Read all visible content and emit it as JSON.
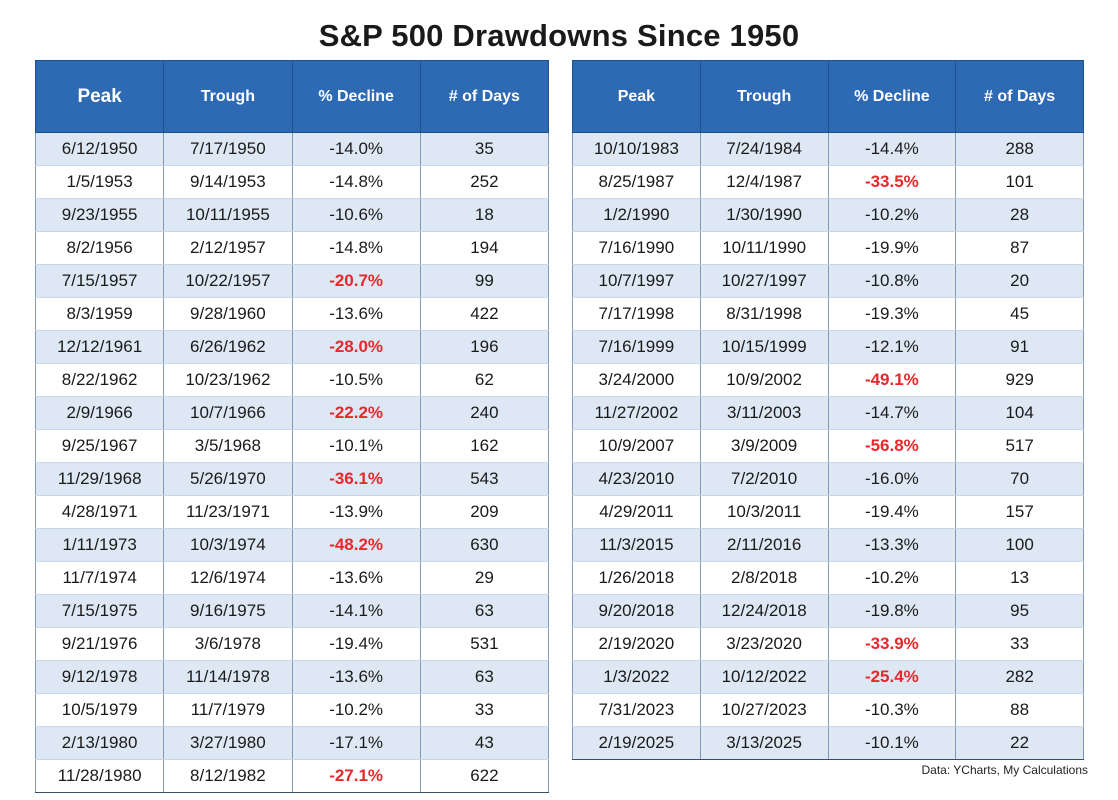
{
  "title": "S&P 500 Drawdowns Since 1950",
  "headers": [
    "Peak",
    "Trough",
    "% Decline",
    "# of Days"
  ],
  "left_table": [
    {
      "peak": "6/12/1950",
      "trough": "7/17/1950",
      "decline": "-14.0%",
      "days": "35",
      "highlight": false
    },
    {
      "peak": "1/5/1953",
      "trough": "9/14/1953",
      "decline": "-14.8%",
      "days": "252",
      "highlight": false
    },
    {
      "peak": "9/23/1955",
      "trough": "10/11/1955",
      "decline": "-10.6%",
      "days": "18",
      "highlight": false
    },
    {
      "peak": "8/2/1956",
      "trough": "2/12/1957",
      "decline": "-14.8%",
      "days": "194",
      "highlight": false
    },
    {
      "peak": "7/15/1957",
      "trough": "10/22/1957",
      "decline": "-20.7%",
      "days": "99",
      "highlight": true
    },
    {
      "peak": "8/3/1959",
      "trough": "9/28/1960",
      "decline": "-13.6%",
      "days": "422",
      "highlight": false
    },
    {
      "peak": "12/12/1961",
      "trough": "6/26/1962",
      "decline": "-28.0%",
      "days": "196",
      "highlight": true
    },
    {
      "peak": "8/22/1962",
      "trough": "10/23/1962",
      "decline": "-10.5%",
      "days": "62",
      "highlight": false
    },
    {
      "peak": "2/9/1966",
      "trough": "10/7/1966",
      "decline": "-22.2%",
      "days": "240",
      "highlight": true
    },
    {
      "peak": "9/25/1967",
      "trough": "3/5/1968",
      "decline": "-10.1%",
      "days": "162",
      "highlight": false
    },
    {
      "peak": "11/29/1968",
      "trough": "5/26/1970",
      "decline": "-36.1%",
      "days": "543",
      "highlight": true
    },
    {
      "peak": "4/28/1971",
      "trough": "11/23/1971",
      "decline": "-13.9%",
      "days": "209",
      "highlight": false
    },
    {
      "peak": "1/11/1973",
      "trough": "10/3/1974",
      "decline": "-48.2%",
      "days": "630",
      "highlight": true
    },
    {
      "peak": "11/7/1974",
      "trough": "12/6/1974",
      "decline": "-13.6%",
      "days": "29",
      "highlight": false
    },
    {
      "peak": "7/15/1975",
      "trough": "9/16/1975",
      "decline": "-14.1%",
      "days": "63",
      "highlight": false
    },
    {
      "peak": "9/21/1976",
      "trough": "3/6/1978",
      "decline": "-19.4%",
      "days": "531",
      "highlight": false
    },
    {
      "peak": "9/12/1978",
      "trough": "11/14/1978",
      "decline": "-13.6%",
      "days": "63",
      "highlight": false
    },
    {
      "peak": "10/5/1979",
      "trough": "11/7/1979",
      "decline": "-10.2%",
      "days": "33",
      "highlight": false
    },
    {
      "peak": "2/13/1980",
      "trough": "3/27/1980",
      "decline": "-17.1%",
      "days": "43",
      "highlight": false
    },
    {
      "peak": "11/28/1980",
      "trough": "8/12/1982",
      "decline": "-27.1%",
      "days": "622",
      "highlight": true
    }
  ],
  "right_table": [
    {
      "peak": "10/10/1983",
      "trough": "7/24/1984",
      "decline": "-14.4%",
      "days": "288",
      "highlight": false
    },
    {
      "peak": "8/25/1987",
      "trough": "12/4/1987",
      "decline": "-33.5%",
      "days": "101",
      "highlight": true
    },
    {
      "peak": "1/2/1990",
      "trough": "1/30/1990",
      "decline": "-10.2%",
      "days": "28",
      "highlight": false
    },
    {
      "peak": "7/16/1990",
      "trough": "10/11/1990",
      "decline": "-19.9%",
      "days": "87",
      "highlight": false
    },
    {
      "peak": "10/7/1997",
      "trough": "10/27/1997",
      "decline": "-10.8%",
      "days": "20",
      "highlight": false
    },
    {
      "peak": "7/17/1998",
      "trough": "8/31/1998",
      "decline": "-19.3%",
      "days": "45",
      "highlight": false
    },
    {
      "peak": "7/16/1999",
      "trough": "10/15/1999",
      "decline": "-12.1%",
      "days": "91",
      "highlight": false
    },
    {
      "peak": "3/24/2000",
      "trough": "10/9/2002",
      "decline": "-49.1%",
      "days": "929",
      "highlight": true
    },
    {
      "peak": "11/27/2002",
      "trough": "3/11/2003",
      "decline": "-14.7%",
      "days": "104",
      "highlight": false
    },
    {
      "peak": "10/9/2007",
      "trough": "3/9/2009",
      "decline": "-56.8%",
      "days": "517",
      "highlight": true
    },
    {
      "peak": "4/23/2010",
      "trough": "7/2/2010",
      "decline": "-16.0%",
      "days": "70",
      "highlight": false
    },
    {
      "peak": "4/29/2011",
      "trough": "10/3/2011",
      "decline": "-19.4%",
      "days": "157",
      "highlight": false
    },
    {
      "peak": "11/3/2015",
      "trough": "2/11/2016",
      "decline": "-13.3%",
      "days": "100",
      "highlight": false
    },
    {
      "peak": "1/26/2018",
      "trough": "2/8/2018",
      "decline": "-10.2%",
      "days": "13",
      "highlight": false
    },
    {
      "peak": "9/20/2018",
      "trough": "12/24/2018",
      "decline": "-19.8%",
      "days": "95",
      "highlight": false
    },
    {
      "peak": "2/19/2020",
      "trough": "3/23/2020",
      "decline": "-33.9%",
      "days": "33",
      "highlight": true
    },
    {
      "peak": "1/3/2022",
      "trough": "10/12/2022",
      "decline": "-25.4%",
      "days": "282",
      "highlight": true
    },
    {
      "peak": "7/31/2023",
      "trough": "10/27/2023",
      "decline": "-10.3%",
      "days": "88",
      "highlight": false
    },
    {
      "peak": "2/19/2025",
      "trough": "3/13/2025",
      "decline": "-10.1%",
      "days": "22",
      "highlight": false
    }
  ],
  "source": "Data: YCharts, My Calculations",
  "colors": {
    "header_bg": "#2e69b3",
    "stripe": "#dde8f4",
    "highlight_text": "#e8282b"
  }
}
